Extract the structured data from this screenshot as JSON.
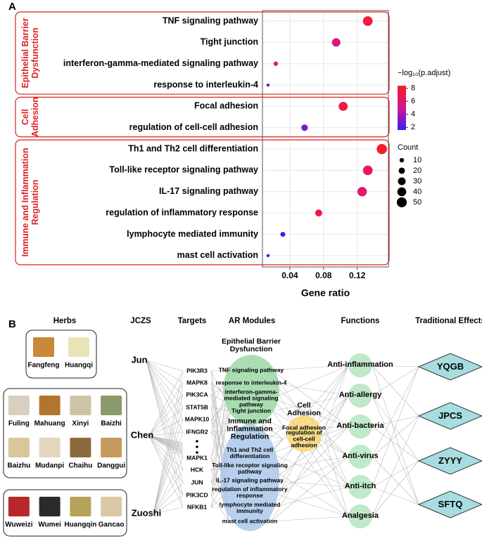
{
  "panel_labels": [
    "A",
    "B"
  ],
  "chart_data": {
    "type": "scatter",
    "x_label": "Gene ratio",
    "xlim": [
      0.0075,
      0.157
    ],
    "xticks": [
      0.04,
      0.08,
      0.12
    ],
    "color_title": "−log₁₀(p.adjust)",
    "color_lim": [
      1.6,
      8.4
    ],
    "color_ticks": [
      2,
      4,
      6,
      8
    ],
    "colors": [
      "#3b1cf5",
      "#d0188e",
      "#fb1a2b"
    ],
    "size_title": "Count",
    "size_ticks": [
      10,
      20,
      30,
      40,
      50
    ],
    "grid": true,
    "groups": [
      {
        "label_lines": [
          "Epithelial Barrier",
          "Dysfunction"
        ],
        "categories": [
          "TNF signaling pathway",
          "Tight junction",
          "interferon-gamma-mediated signaling pathway",
          "response to interleukin-4"
        ],
        "x": [
          0.1325,
          0.095,
          0.0233,
          0.0142
        ],
        "count": [
          47,
          36,
          10,
          5
        ],
        "padj": [
          7.6,
          5.6,
          7.2,
          2.5
        ]
      },
      {
        "label_lines": [
          "Cell",
          "Adhesion"
        ],
        "categories": [
          "Focal adhesion",
          "regulation of cell-cell adhesion"
        ],
        "x": [
          0.1033,
          0.0575
        ],
        "count": [
          41,
          21
        ],
        "padj": [
          7.6,
          3.0
        ]
      },
      {
        "label_lines": [
          "Immune and Inflammation",
          "Regulation"
        ],
        "categories": [
          "Th1 and Th2 cell differentiation",
          "Toll-like receptor signaling pathway",
          "IL-17 signaling pathway",
          "regulation of inflammatory response",
          "lymphocyte mediated immunity",
          "mast cell activation"
        ],
        "x": [
          0.1492,
          0.1325,
          0.1258,
          0.0742,
          0.0317,
          0.0142
        ],
        "count": [
          53,
          47,
          45,
          25,
          12,
          5
        ],
        "padj": [
          8.2,
          7.0,
          6.1,
          7.5,
          1.7,
          1.7
        ]
      }
    ]
  },
  "network": {
    "headers": [
      "Herbs",
      "JCZS",
      "Targets",
      "AR Modules",
      "Functions",
      "Traditional Effects"
    ],
    "herb_boxes": [
      [
        "Fangfeng",
        "Huangqi"
      ],
      [
        "Fuling",
        "Mahuang",
        "Xinyi",
        "Baizhi",
        "Baizhu",
        "Mudanpi",
        "Chaihu",
        "Danggui"
      ],
      [
        "Wuweizi",
        "Wumei",
        "Huangqin",
        "Gancao"
      ]
    ],
    "jczs": [
      "Jun",
      "Chen",
      "Zuoshi"
    ],
    "targets": [
      "PIK3R3",
      "MAPK8",
      "PIK3CA",
      "STAT5B",
      "MAPK10",
      "IFNGR2",
      "MAPK1",
      "HCK",
      "JUN",
      "PIK3CD",
      "NFKB1"
    ],
    "modules": [
      {
        "title": "Epithelial Barrier Dysfunction",
        "items": [
          "TNF signaling pathway",
          "response to interleukin-4",
          "interferon-gamma-mediated signaling pathway",
          "Tight junction"
        ]
      },
      {
        "title": "Immune and Inflammation Regulation",
        "items": [
          "Th1 and Th2 cell differentiation",
          "Toll-like receptor signaling pathway",
          "IL-17 signaling pathway",
          "regulation of inflammatory response",
          "lymphocyte mediated immunity",
          "mast cell activation"
        ]
      },
      {
        "title": "Cell Adhesion",
        "items": [
          "Focal adhesion",
          "regulation of cell-cell adhesion"
        ]
      }
    ],
    "functions": [
      "Anti-inflammation",
      "Anti-allergy",
      "Anti-bacteria",
      "Anti-virus",
      "Anti-itch",
      "Analgesia"
    ],
    "effects": [
      "YQGB",
      "JPCS",
      "ZYYY",
      "SFTQ"
    ]
  }
}
